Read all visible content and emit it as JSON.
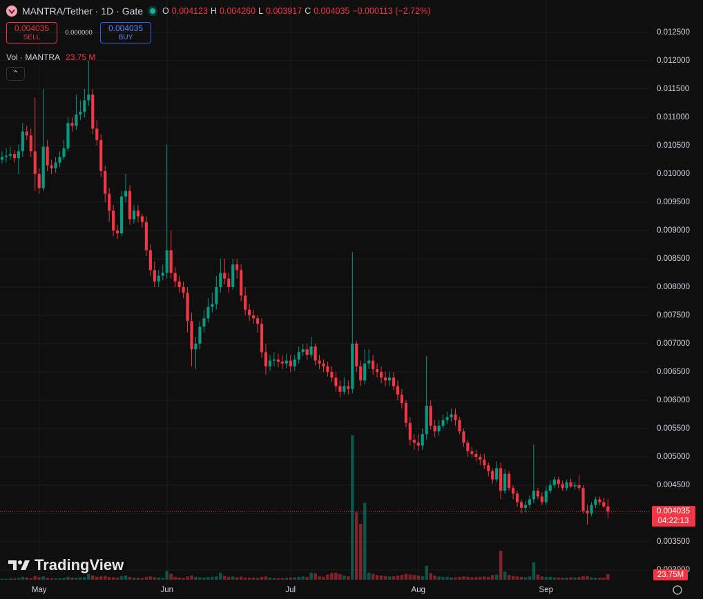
{
  "chart_data": {
    "type": "candlestick",
    "title": "MANTRA/Tether · 1D · Gate",
    "ohlc_legend": {
      "labels": [
        "O",
        "H",
        "L",
        "C"
      ],
      "values": [
        "0.004123",
        "0.004260",
        "0.003917",
        "0.004035"
      ],
      "change": "−0.000113 (−2.72%)"
    },
    "trade": {
      "sell_price": "0.004035",
      "sell_label": "SELL",
      "spread": "0.000000",
      "buy_price": "0.004035",
      "buy_label": "BUY"
    },
    "volume_title": "Vol · MANTRA",
    "volume_value": "23.75 M",
    "last_price_label": "0.004035",
    "countdown": "04:22:13",
    "volume_tag": "23.75M",
    "brand": "TradingView",
    "up_color": "#089981",
    "down_color": "#f23645",
    "grid": true,
    "xlim": [
      -0.5,
      157
    ],
    "xticks": [
      {
        "value": 9,
        "label": "May"
      },
      {
        "value": 40,
        "label": "Jun"
      },
      {
        "value": 70,
        "label": "Jul"
      },
      {
        "value": 101,
        "label": "Aug"
      },
      {
        "value": 132,
        "label": "Sep"
      }
    ],
    "ylim": [
      0.002732,
      0.013073
    ],
    "yticks": [
      {
        "value": 0.003,
        "label": "0.003000"
      },
      {
        "value": 0.0035,
        "label": "0.003500"
      },
      {
        "value": 0.004,
        "label": "0.004000"
      },
      {
        "value": 0.0045,
        "label": "0.004500"
      },
      {
        "value": 0.005,
        "label": "0.005000"
      },
      {
        "value": 0.0055,
        "label": "0.005500"
      },
      {
        "value": 0.006,
        "label": "0.006000"
      },
      {
        "value": 0.0065,
        "label": "0.006500"
      },
      {
        "value": 0.007,
        "label": "0.007000"
      },
      {
        "value": 0.0075,
        "label": "0.007500"
      },
      {
        "value": 0.008,
        "label": "0.008000"
      },
      {
        "value": 0.0085,
        "label": "0.008500"
      },
      {
        "value": 0.009,
        "label": "0.009000"
      },
      {
        "value": 0.0095,
        "label": "0.009500"
      },
      {
        "value": 0.01,
        "label": "0.010000"
      },
      {
        "value": 0.0105,
        "label": "0.010500"
      },
      {
        "value": 0.011,
        "label": "0.011000"
      },
      {
        "value": 0.0115,
        "label": "0.011500"
      },
      {
        "value": 0.012,
        "label": "0.012000"
      },
      {
        "value": 0.0125,
        "label": "0.012500"
      }
    ],
    "vlim": [
      0,
      800000000
    ],
    "open": [
      0.01025,
      0.0103,
      0.01032,
      0.01035,
      0.01028,
      0.0104,
      0.01075,
      0.01068,
      0.0104,
      0.01,
      0.00975,
      0.01048,
      0.01015,
      0.0101,
      0.0102,
      0.0103,
      0.01045,
      0.0109,
      0.01085,
      0.01105,
      0.0111,
      0.0113,
      0.0114,
      0.0108,
      0.0106,
      0.01005,
      0.00965,
      0.00935,
      0.009,
      0.00895,
      0.0096,
      0.0097,
      0.0092,
      0.00935,
      0.00925,
      0.00915,
      0.00865,
      0.0083,
      0.0081,
      0.0082,
      0.00825,
      0.00865,
      0.00825,
      0.0081,
      0.008,
      0.0079,
      0.0074,
      0.0069,
      0.007,
      0.0073,
      0.00745,
      0.00765,
      0.0077,
      0.008,
      0.00825,
      0.00815,
      0.008,
      0.0084,
      0.0083,
      0.00785,
      0.0076,
      0.0075,
      0.00745,
      0.00735,
      0.00685,
      0.0066,
      0.0067,
      0.00672,
      0.00668,
      0.00665,
      0.0067,
      0.0066,
      0.00672,
      0.00685,
      0.0069,
      0.0068,
      0.00695,
      0.0067,
      0.00665,
      0.0066,
      0.0065,
      0.0064,
      0.00625,
      0.00615,
      0.00625,
      0.0062,
      0.007,
      0.0066,
      0.00635,
      0.00665,
      0.0067,
      0.00655,
      0.0065,
      0.0064,
      0.00635,
      0.0064,
      0.00625,
      0.0061,
      0.00595,
      0.0056,
      0.0053,
      0.00525,
      0.0052,
      0.0054,
      0.0059,
      0.00555,
      0.00545,
      0.00555,
      0.00565,
      0.0057,
      0.00575,
      0.00565,
      0.00545,
      0.00525,
      0.0051,
      0.00505,
      0.005,
      0.00495,
      0.00485,
      0.00475,
      0.0046,
      0.0048,
      0.0044,
      0.0047,
      0.00445,
      0.00435,
      0.0042,
      0.0041,
      0.00415,
      0.00425,
      0.0044,
      0.0043,
      0.0042,
      0.0044,
      0.0045,
      0.0046,
      0.00452,
      0.00445,
      0.00455,
      0.00448,
      0.0045,
      0.00445,
      0.00405,
      0.004,
      0.00415,
      0.00425,
      0.0042,
      0.004123
    ],
    "high": [
      0.0104,
      0.01045,
      0.01048,
      0.01042,
      0.01052,
      0.0109,
      0.01085,
      0.0108,
      0.01135,
      0.0101,
      0.0115,
      0.0106,
      0.01025,
      0.0103,
      0.0104,
      0.0106,
      0.011,
      0.011,
      0.0114,
      0.0113,
      0.0115,
      0.012,
      0.0115,
      0.01095,
      0.0107,
      0.01015,
      0.00975,
      0.00945,
      0.0091,
      0.0097,
      0.01,
      0.0098,
      0.00945,
      0.00945,
      0.0093,
      0.00925,
      0.00875,
      0.00845,
      0.0083,
      0.0084,
      0.01052,
      0.009,
      0.00835,
      0.0082,
      0.0081,
      0.008,
      0.00755,
      0.00712,
      0.0074,
      0.0076,
      0.0078,
      0.0079,
      0.0082,
      0.0085,
      0.0085,
      0.00825,
      0.0085,
      0.0085,
      0.0084,
      0.008,
      0.0077,
      0.0076,
      0.0075,
      0.00745,
      0.007,
      0.0068,
      0.00685,
      0.00682,
      0.0068,
      0.00682,
      0.0068,
      0.0068,
      0.00695,
      0.007,
      0.007,
      0.00712,
      0.007,
      0.0068,
      0.00672,
      0.00668,
      0.0066,
      0.0065,
      0.00635,
      0.0064,
      0.00635,
      0.00862,
      0.00705,
      0.0067,
      0.0069,
      0.0069,
      0.0068,
      0.00665,
      0.0066,
      0.0065,
      0.0065,
      0.0065,
      0.00635,
      0.0062,
      0.006,
      0.0057,
      0.0054,
      0.0054,
      0.0055,
      0.00678,
      0.006,
      0.00565,
      0.00565,
      0.00575,
      0.0058,
      0.00585,
      0.00585,
      0.0057,
      0.0055,
      0.0053,
      0.00518,
      0.00512,
      0.00505,
      0.00505,
      0.0049,
      0.0048,
      0.00492,
      0.0049,
      0.00478,
      0.00475,
      0.0045,
      0.0044,
      0.00425,
      0.00422,
      0.00432,
      0.00522,
      0.00445,
      0.00438,
      0.00448,
      0.00458,
      0.00465,
      0.00465,
      0.00458,
      0.0046,
      0.00462,
      0.00456,
      0.00468,
      0.0045,
      0.00415,
      0.0042,
      0.0043,
      0.0043,
      0.00428,
      0.00426
    ],
    "low": [
      0.01018,
      0.0102,
      0.01025,
      0.0102,
      0.01,
      0.0103,
      0.0106,
      0.0103,
      0.0097,
      0.00965,
      0.0097,
      0.01005,
      0.01,
      0.01002,
      0.01012,
      0.01025,
      0.0104,
      0.01075,
      0.01078,
      0.01095,
      0.011,
      0.0112,
      0.0107,
      0.0105,
      0.00995,
      0.0095,
      0.00915,
      0.0089,
      0.00885,
      0.0089,
      0.0095,
      0.0091,
      0.00912,
      0.00915,
      0.00905,
      0.00855,
      0.0082,
      0.008,
      0.008,
      0.00812,
      0.00815,
      0.00815,
      0.008,
      0.0079,
      0.0078,
      0.0072,
      0.0066,
      0.00655,
      0.0069,
      0.0072,
      0.00738,
      0.00755,
      0.0076,
      0.0079,
      0.00805,
      0.0079,
      0.00795,
      0.00815,
      0.00775,
      0.0075,
      0.0074,
      0.00735,
      0.0072,
      0.00675,
      0.00645,
      0.00652,
      0.0066,
      0.00658,
      0.00655,
      0.00656,
      0.0065,
      0.00652,
      0.00665,
      0.00678,
      0.00672,
      0.00675,
      0.00662,
      0.00655,
      0.0065,
      0.00642,
      0.00632,
      0.00615,
      0.00605,
      0.0061,
      0.0061,
      0.00612,
      0.0065,
      0.00625,
      0.00628,
      0.00655,
      0.00645,
      0.0064,
      0.0063,
      0.00625,
      0.00625,
      0.00618,
      0.006,
      0.00585,
      0.00552,
      0.0052,
      0.00512,
      0.0051,
      0.00512,
      0.0053,
      0.00548,
      0.00535,
      0.00538,
      0.0055,
      0.00558,
      0.00562,
      0.00555,
      0.0054,
      0.00518,
      0.005,
      0.00498,
      0.00492,
      0.00485,
      0.00478,
      0.00465,
      0.00452,
      0.00455,
      0.00425,
      0.00435,
      0.0044,
      0.00425,
      0.00412,
      0.004,
      0.00402,
      0.0041,
      0.00418,
      0.00425,
      0.00415,
      0.00415,
      0.00435,
      0.00445,
      0.00445,
      0.0044,
      0.0044,
      0.00445,
      0.00442,
      0.0044,
      0.004,
      0.0038,
      0.00395,
      0.0041,
      0.00415,
      0.0041,
      0.003917
    ],
    "close": [
      0.0103,
      0.01032,
      0.01035,
      0.01028,
      0.0104,
      0.01075,
      0.01068,
      0.0104,
      0.01,
      0.00975,
      0.01048,
      0.01015,
      0.0101,
      0.0102,
      0.0103,
      0.01045,
      0.0109,
      0.01085,
      0.01105,
      0.0111,
      0.0113,
      0.0114,
      0.0108,
      0.0106,
      0.01005,
      0.00965,
      0.00935,
      0.009,
      0.00895,
      0.0096,
      0.0097,
      0.0092,
      0.00935,
      0.00925,
      0.00915,
      0.00865,
      0.0083,
      0.0081,
      0.0082,
      0.00825,
      0.00865,
      0.00825,
      0.0081,
      0.008,
      0.0079,
      0.0074,
      0.0069,
      0.007,
      0.0073,
      0.00745,
      0.00765,
      0.0077,
      0.008,
      0.00825,
      0.00815,
      0.008,
      0.0084,
      0.0083,
      0.00785,
      0.0076,
      0.0075,
      0.00745,
      0.00735,
      0.00685,
      0.0066,
      0.0067,
      0.00672,
      0.00668,
      0.00665,
      0.0067,
      0.0066,
      0.00672,
      0.00685,
      0.0069,
      0.0068,
      0.00695,
      0.0067,
      0.00665,
      0.0066,
      0.0065,
      0.0064,
      0.00625,
      0.00615,
      0.00625,
      0.0062,
      0.007,
      0.0066,
      0.00635,
      0.00665,
      0.0067,
      0.00655,
      0.0065,
      0.0064,
      0.00635,
      0.0064,
      0.00625,
      0.0061,
      0.00595,
      0.0056,
      0.0053,
      0.00525,
      0.0052,
      0.0054,
      0.0059,
      0.00555,
      0.00545,
      0.00555,
      0.00565,
      0.0057,
      0.00575,
      0.00565,
      0.00545,
      0.00525,
      0.0051,
      0.00505,
      0.005,
      0.00495,
      0.00485,
      0.00475,
      0.0046,
      0.0048,
      0.0044,
      0.0047,
      0.00445,
      0.00435,
      0.0042,
      0.0041,
      0.00415,
      0.00425,
      0.0044,
      0.0043,
      0.0042,
      0.0044,
      0.0045,
      0.0046,
      0.00452,
      0.00445,
      0.00455,
      0.00448,
      0.0045,
      0.00445,
      0.00405,
      0.004,
      0.00415,
      0.00425,
      0.0042,
      0.004123,
      0.004035
    ],
    "volume": [
      5000000,
      4000000,
      6000000,
      5000000,
      8000000,
      12000000,
      9000000,
      7000000,
      15000000,
      10000000,
      14000000,
      8000000,
      6000000,
      5000000,
      6000000,
      7000000,
      12000000,
      9000000,
      8000000,
      10000000,
      11000000,
      25000000,
      18000000,
      12000000,
      14000000,
      16000000,
      12000000,
      10000000,
      8000000,
      15000000,
      18000000,
      12000000,
      9000000,
      8000000,
      7000000,
      12000000,
      14000000,
      10000000,
      9000000,
      8000000,
      38000000,
      25000000,
      12000000,
      9000000,
      8000000,
      14000000,
      18000000,
      12000000,
      10000000,
      9000000,
      11000000,
      12000000,
      14000000,
      30000000,
      16000000,
      12000000,
      14000000,
      10000000,
      13000000,
      9000000,
      8000000,
      8000000,
      7000000,
      12000000,
      14000000,
      9000000,
      7000000,
      6000000,
      7000000,
      8000000,
      9000000,
      10000000,
      12000000,
      14000000,
      11000000,
      30000000,
      28000000,
      15000000,
      12000000,
      22000000,
      28000000,
      30000000,
      24000000,
      18000000,
      15000000,
      620000000,
      290000000,
      240000000,
      330000000,
      30000000,
      25000000,
      20000000,
      18000000,
      16000000,
      14000000,
      15000000,
      18000000,
      20000000,
      25000000,
      22000000,
      20000000,
      18000000,
      15000000,
      60000000,
      28000000,
      18000000,
      14000000,
      12000000,
      12000000,
      10000000,
      10000000,
      12000000,
      14000000,
      12000000,
      10000000,
      11000000,
      12000000,
      14000000,
      12000000,
      20000000,
      22000000,
      125000000,
      35000000,
      20000000,
      16000000,
      14000000,
      12000000,
      10000000,
      14000000,
      75000000,
      22000000,
      14000000,
      12000000,
      12000000,
      10000000,
      9000000,
      8000000,
      9000000,
      10000000,
      9000000,
      12000000,
      15000000,
      16000000,
      10000000,
      9000000,
      8000000,
      9000000,
      23750000
    ]
  }
}
